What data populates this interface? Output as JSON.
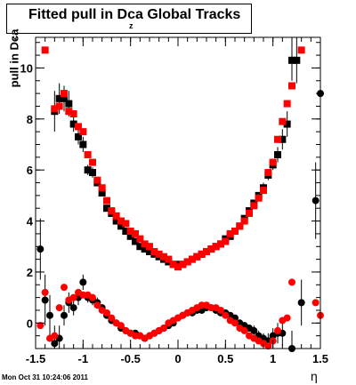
{
  "title": "Fitted pull in Dca",
  "title_suffix": "Global Tracks",
  "title_subscript": "z",
  "ylabel": "pull in Dca",
  "ylabel_subscript": "z",
  "xlabel": "η",
  "timestamp": "Mon Oct 31 10:24:06 2011",
  "colors": {
    "series_black": "#000000",
    "series_red": "#ff0000"
  },
  "chart_data": {
    "type": "scatter",
    "xlim": [
      -1.5,
      1.5
    ],
    "ylim": [
      -1.0,
      11.2
    ],
    "x_ticks": [
      -1.5,
      -1,
      -0.5,
      0,
      0.5,
      1,
      1.5
    ],
    "x_tick_labels": [
      "-1.5",
      "-1",
      "-0.5",
      "0",
      "0.5",
      "1",
      "1.5"
    ],
    "y_ticks": [
      0,
      2,
      4,
      6,
      8,
      10
    ],
    "y_tick_labels": [
      "0",
      "2",
      "4",
      "6",
      "8",
      "10"
    ],
    "series": [
      {
        "marker": "square",
        "color": "#000000",
        "x": [
          -1.3,
          -1.25,
          -1.2,
          -1.15,
          -1.1,
          -1.05,
          -1.0,
          -0.95,
          -0.9,
          -0.85,
          -0.8,
          -0.75,
          -0.7,
          -0.65,
          -0.6,
          -0.55,
          -0.5,
          -0.45,
          -0.4,
          -0.35,
          -0.3,
          -0.25,
          -0.2,
          -0.15,
          -0.1,
          -0.05,
          0.0,
          0.05,
          0.1,
          0.15,
          0.2,
          0.25,
          0.3,
          0.35,
          0.4,
          0.45,
          0.5,
          0.55,
          0.6,
          0.65,
          0.7,
          0.75,
          0.8,
          0.85,
          0.9,
          0.95,
          1.0,
          1.05,
          1.1,
          1.15,
          1.2,
          1.25
        ],
        "y": [
          8.3,
          8.8,
          8.8,
          8.6,
          7.8,
          7.3,
          7.0,
          6.0,
          5.9,
          5.5,
          5.1,
          4.5,
          4.3,
          4.0,
          3.8,
          3.6,
          3.4,
          3.2,
          3.0,
          2.9,
          2.8,
          2.7,
          2.6,
          2.5,
          2.4,
          2.3,
          2.3,
          2.3,
          2.4,
          2.5,
          2.6,
          2.7,
          2.8,
          2.9,
          3.0,
          3.1,
          3.3,
          3.4,
          3.6,
          3.8,
          4.1,
          4.4,
          4.7,
          5.0,
          5.3,
          5.8,
          6.2,
          6.6,
          7.2,
          7.8,
          10.3,
          10.3
        ],
        "yerr": [
          0.8,
          0.6,
          0.5,
          0.5,
          0.3,
          0.3,
          0.3,
          0.2,
          0.2,
          0.1,
          0.1,
          0.1,
          0.1,
          0.1,
          0.1,
          0.1,
          0.1,
          0.1,
          0.1,
          0.1,
          0.1,
          0.1,
          0.1,
          0.1,
          0.1,
          0.1,
          0.1,
          0.1,
          0.1,
          0.1,
          0.1,
          0.1,
          0.1,
          0.1,
          0.1,
          0.1,
          0.1,
          0.1,
          0.1,
          0.1,
          0.1,
          0.1,
          0.1,
          0.1,
          0.2,
          0.2,
          0.2,
          0.3,
          0.4,
          0.5,
          0.8,
          0.9
        ]
      },
      {
        "marker": "square",
        "color": "#ff0000",
        "x": [
          -1.4,
          -1.3,
          -1.25,
          -1.2,
          -1.15,
          -1.1,
          -1.05,
          -1.0,
          -0.95,
          -0.9,
          -0.85,
          -0.8,
          -0.75,
          -0.7,
          -0.65,
          -0.6,
          -0.55,
          -0.5,
          -0.45,
          -0.4,
          -0.35,
          -0.3,
          -0.25,
          -0.2,
          -0.15,
          -0.1,
          -0.05,
          0.0,
          0.05,
          0.1,
          0.15,
          0.2,
          0.25,
          0.3,
          0.35,
          0.4,
          0.45,
          0.5,
          0.55,
          0.6,
          0.65,
          0.7,
          0.75,
          0.8,
          0.85,
          0.9,
          0.95,
          1.0,
          1.05,
          1.1,
          1.15,
          1.2,
          1.3
        ],
        "y": [
          10.7,
          8.4,
          8.5,
          9.0,
          8.3,
          8.2,
          7.7,
          7.5,
          6.6,
          6.3,
          5.6,
          5.3,
          4.8,
          4.4,
          4.2,
          4.0,
          3.9,
          3.6,
          3.5,
          3.3,
          3.1,
          3.0,
          2.8,
          2.7,
          2.6,
          2.5,
          2.3,
          2.2,
          2.3,
          2.4,
          2.5,
          2.6,
          2.7,
          2.8,
          2.9,
          3.0,
          3.1,
          3.2,
          3.5,
          3.6,
          3.8,
          4.0,
          4.3,
          4.6,
          4.9,
          5.2,
          5.9,
          6.3,
          7.2,
          7.9,
          8.6,
          9.3,
          10.7
        ]
      },
      {
        "marker": "circle",
        "color": "#000000",
        "x": [
          -1.45,
          -1.4,
          -1.35,
          -1.3,
          -1.25,
          -1.2,
          -1.15,
          -1.1,
          -1.05,
          -1.0,
          -0.95,
          -0.9,
          -0.85,
          -0.8,
          -0.75,
          -0.7,
          -0.65,
          -0.6,
          -0.55,
          -0.5,
          -0.45,
          -0.4,
          -0.35,
          -0.3,
          -0.25,
          -0.2,
          -0.15,
          -0.1,
          -0.05,
          0.0,
          0.05,
          0.1,
          0.15,
          0.2,
          0.25,
          0.3,
          0.35,
          0.4,
          0.45,
          0.5,
          0.55,
          0.6,
          0.65,
          0.7,
          0.75,
          0.8,
          0.85,
          0.9,
          0.95,
          1.0,
          1.05,
          1.1,
          1.2,
          1.3,
          1.45,
          1.5
        ],
        "y": [
          2.9,
          0.9,
          0.3,
          -0.8,
          -0.6,
          0.3,
          0.8,
          0.6,
          1.0,
          1.6,
          1.0,
          0.9,
          0.8,
          0.6,
          0.3,
          0.1,
          0.0,
          -0.2,
          -0.3,
          -0.4,
          -0.4,
          -0.5,
          -0.6,
          -0.5,
          -0.4,
          -0.3,
          -0.2,
          -0.1,
          0.0,
          0.2,
          0.3,
          0.4,
          0.4,
          0.5,
          0.5,
          0.6,
          0.6,
          0.5,
          0.4,
          0.4,
          0.3,
          0.2,
          0.0,
          -0.1,
          -0.2,
          -0.3,
          -0.5,
          -0.6,
          -0.7,
          -0.5,
          -0.4,
          -0.4,
          -1.0,
          0.8,
          4.8,
          9.0
        ],
        "yerr": [
          1.2,
          1.0,
          0.8,
          0.7,
          0.5,
          0.4,
          0.4,
          0.3,
          0.3,
          0.3,
          0.2,
          0.2,
          0.2,
          0.1,
          0.1,
          0.1,
          0.1,
          0.1,
          0.1,
          0.1,
          0.1,
          0.1,
          0.1,
          0.1,
          0.1,
          0.1,
          0.1,
          0.1,
          0.1,
          0.1,
          0.1,
          0.1,
          0.1,
          0.1,
          0.1,
          0.1,
          0.1,
          0.1,
          0.1,
          0.1,
          0.1,
          0.1,
          0.1,
          0.1,
          0.1,
          0.2,
          0.2,
          0.2,
          0.3,
          0.3,
          0.4,
          0.5,
          0.7,
          0.9,
          1.5,
          2.0
        ]
      },
      {
        "marker": "circle",
        "color": "#ff0000",
        "x": [
          -1.45,
          -1.4,
          -1.35,
          -1.3,
          -1.25,
          -1.2,
          -1.15,
          -1.1,
          -1.05,
          -1.0,
          -0.95,
          -0.9,
          -0.85,
          -0.8,
          -0.75,
          -0.7,
          -0.65,
          -0.6,
          -0.55,
          -0.5,
          -0.45,
          -0.4,
          -0.35,
          -0.3,
          -0.25,
          -0.2,
          -0.15,
          -0.1,
          -0.05,
          0.0,
          0.05,
          0.1,
          0.15,
          0.2,
          0.25,
          0.3,
          0.35,
          0.4,
          0.45,
          0.5,
          0.55,
          0.6,
          0.65,
          0.7,
          0.75,
          0.8,
          0.85,
          0.9,
          0.95,
          1.0,
          1.05,
          1.1,
          1.15,
          1.2,
          1.45,
          1.5
        ],
        "y": [
          -0.1,
          1.2,
          -0.6,
          -0.5,
          0.6,
          1.4,
          0.9,
          1.0,
          1.2,
          1.1,
          1.1,
          1.0,
          0.7,
          0.5,
          0.4,
          0.2,
          0.0,
          -0.1,
          -0.3,
          -0.4,
          -0.5,
          -0.5,
          -0.6,
          -0.5,
          -0.4,
          -0.3,
          -0.2,
          0.0,
          0.1,
          0.2,
          0.3,
          0.4,
          0.5,
          0.6,
          0.7,
          0.7,
          0.6,
          0.6,
          0.5,
          0.3,
          0.1,
          0.0,
          -0.2,
          -0.3,
          -0.5,
          -0.6,
          -0.7,
          -0.8,
          -0.9,
          -0.7,
          -0.3,
          0.1,
          0.2,
          1.6,
          0.8,
          0.3
        ]
      }
    ]
  }
}
